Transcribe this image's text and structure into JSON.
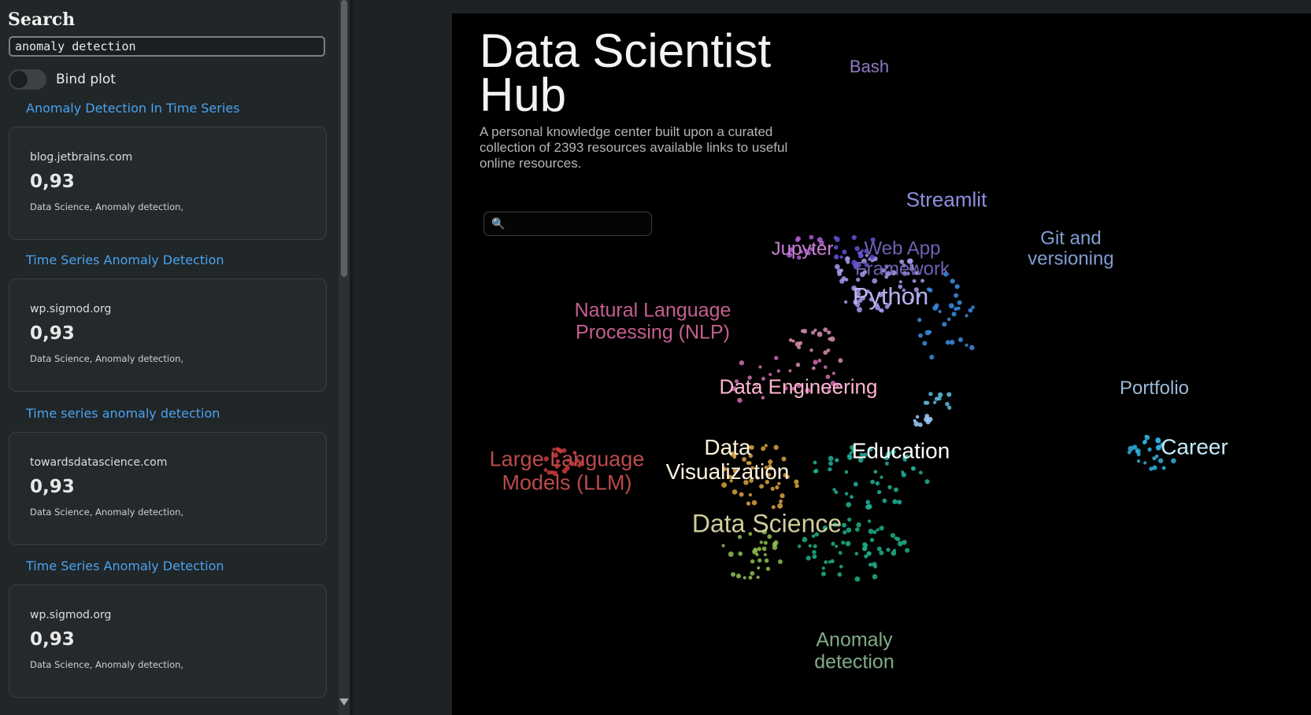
{
  "sidebar": {
    "title": "Search",
    "search_value": "anomaly detection",
    "toggle_label": "Bind plot",
    "toggle_on": false,
    "results": [
      {
        "title": "Anomaly Detection In Time Series",
        "host": "blog.jetbrains.com",
        "score": "0,93",
        "tags": "Data Science, Anomaly detection,"
      },
      {
        "title": "Time Series Anomaly Detection",
        "host": "wp.sigmod.org",
        "score": "0,93",
        "tags": "Data Science, Anomaly detection,"
      },
      {
        "title": "Time series anomaly detection",
        "host": "towardsdatascience.com",
        "score": "0,93",
        "tags": "Data Science, Anomaly detection,"
      },
      {
        "title": "Time Series Anomaly Detection",
        "host": "wp.sigmod.org",
        "score": "0,93",
        "tags": "Data Science, Anomaly detection,"
      }
    ]
  },
  "plot": {
    "title": "Data Scientist Hub",
    "description": "A personal knowledge center built upon a curated collection of 2393 resources available links to useful online resources.",
    "search_icon": "magnifier-icon",
    "clusters": [
      {
        "label": "Bash",
        "color": "#8e78c6"
      },
      {
        "label": "Streamlit",
        "color": "#8e8ee0"
      },
      {
        "label": "Jupyter",
        "color": "#c77fd2"
      },
      {
        "label": "Web App Framework",
        "color": "#6c62b4"
      },
      {
        "label": "Git and versioning",
        "color": "#7f9ed2"
      },
      {
        "label": "Python",
        "color": "#b7b1f0"
      },
      {
        "label": "Natural Language Processing (NLP)",
        "color": "#c55f90"
      },
      {
        "label": "Data Engineering",
        "color": "#ffb6cf"
      },
      {
        "label": "Portfolio",
        "color": "#9bb9d6"
      },
      {
        "label": "Large Language Models (LLM)",
        "color": "#bb4b4b"
      },
      {
        "label": "Data Visualization",
        "color": "#fff3de"
      },
      {
        "label": "Education",
        "color": "#ffffff"
      },
      {
        "label": "Career",
        "color": "#c8ecff"
      },
      {
        "label": "Data Science",
        "color": "#cfcd9c"
      },
      {
        "label": "Anomaly detection",
        "color": "#7fab86"
      }
    ]
  }
}
